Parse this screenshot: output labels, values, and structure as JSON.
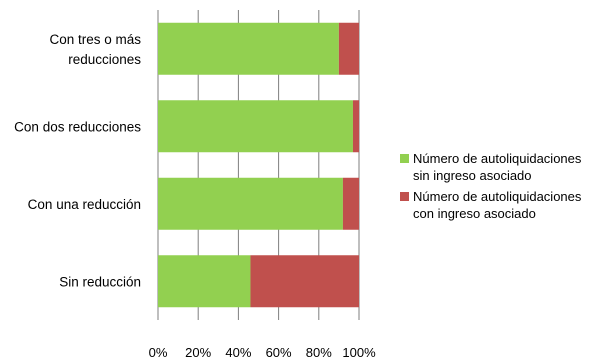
{
  "chart_data": {
    "type": "bar",
    "orientation": "horizontal",
    "stacked": "percent",
    "categories": [
      "Con tres o más\nreducciones",
      "Con dos reducciones",
      "Con una reducción",
      "Sin reducción"
    ],
    "series": [
      {
        "name": "Número de autoliquidaciones\nsin ingreso asociado",
        "color": "#92D050",
        "values": [
          90,
          97,
          92,
          46
        ]
      },
      {
        "name": "Número de autoliquidaciones\ncon ingreso asociado",
        "color": "#C0504D",
        "values": [
          10,
          3,
          8,
          54
        ]
      }
    ],
    "xticks": [
      "0%",
      "20%",
      "40%",
      "60%",
      "80%",
      "100%"
    ],
    "xlim": [
      0,
      100
    ],
    "grid": true,
    "legend_position": "right"
  }
}
